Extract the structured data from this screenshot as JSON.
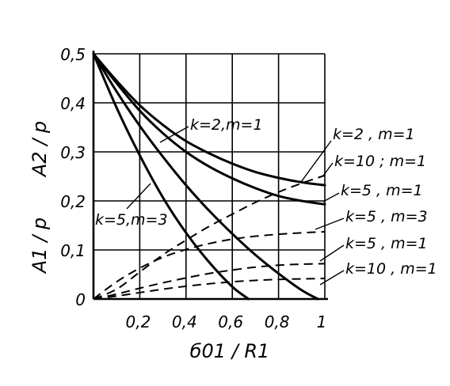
{
  "chart_data": {
    "type": "line",
    "title": "",
    "xlabel": "б01 / R1",
    "ylabel_1": "A1 / p",
    "ylabel_2": "A2 / p",
    "xlim": [
      0,
      1
    ],
    "ylim": [
      0,
      0.5
    ],
    "grid": true,
    "x_ticks": [
      {
        "value": 0.2,
        "label": "0,2"
      },
      {
        "value": 0.4,
        "label": "0,4"
      },
      {
        "value": 0.6,
        "label": "0,6"
      },
      {
        "value": 0.8,
        "label": "0,8"
      },
      {
        "value": 1.0,
        "label": "1"
      }
    ],
    "y_ticks": [
      {
        "value": 0,
        "label": "0"
      },
      {
        "value": 0.1,
        "label": "0,1"
      },
      {
        "value": 0.2,
        "label": "0,2"
      },
      {
        "value": 0.3,
        "label": "0,3"
      },
      {
        "value": 0.4,
        "label": "0,4"
      },
      {
        "value": 0.5,
        "label": "0,5"
      }
    ],
    "series": [
      {
        "name": "k=2, m=1",
        "style": "solid",
        "label": "k=2,m=1",
        "x": [
          0,
          0.1,
          0.2,
          0.3,
          0.4,
          0.5,
          0.6,
          0.7,
          0.8,
          0.9,
          1.0
        ],
        "y": [
          0.5,
          0.445,
          0.395,
          0.355,
          0.322,
          0.297,
          0.276,
          0.259,
          0.247,
          0.238,
          0.232
        ]
      },
      {
        "name": "k=10, m=1",
        "style": "solid",
        "label": "k=10 ; m=1",
        "x": [
          0,
          0.1,
          0.2,
          0.3,
          0.4,
          0.5,
          0.6,
          0.7,
          0.8,
          0.9,
          1.0
        ],
        "y": [
          0.5,
          0.44,
          0.384,
          0.338,
          0.3,
          0.27,
          0.246,
          0.226,
          0.21,
          0.2,
          0.193
        ]
      },
      {
        "name": "k=5, m=3",
        "style": "solid",
        "label": "k=5,m=3",
        "x": [
          0,
          0.1,
          0.2,
          0.3,
          0.4,
          0.5,
          0.6,
          0.67
        ],
        "y": [
          0.5,
          0.39,
          0.293,
          0.207,
          0.135,
          0.075,
          0.025,
          0
        ]
      },
      {
        "name": "k=5, m=1",
        "style": "solid",
        "label": "k=5 , m=1",
        "x": [
          0,
          0.1,
          0.2,
          0.3,
          0.4,
          0.5,
          0.6,
          0.7,
          0.8,
          0.9,
          0.97
        ],
        "y": [
          0.5,
          0.423,
          0.353,
          0.29,
          0.232,
          0.18,
          0.133,
          0.09,
          0.052,
          0.018,
          0
        ]
      },
      {
        "name": "k=2, m=1 (A2)",
        "style": "dashed",
        "x": [
          0,
          0.1,
          0.2,
          0.3,
          0.4,
          0.5,
          0.6,
          0.7,
          0.8,
          0.9,
          1.0
        ],
        "y": [
          0,
          0.02,
          0.055,
          0.09,
          0.12,
          0.148,
          0.173,
          0.197,
          0.218,
          0.236,
          0.252
        ]
      },
      {
        "name": "k=5, m=3 (A2)",
        "style": "dashed",
        "label": "k=5 , m=3",
        "x": [
          0,
          0.1,
          0.2,
          0.3,
          0.4,
          0.5,
          0.6,
          0.7,
          0.8,
          0.9,
          1.0
        ],
        "y": [
          0,
          0.035,
          0.063,
          0.085,
          0.101,
          0.113,
          0.122,
          0.128,
          0.132,
          0.135,
          0.137
        ]
      },
      {
        "name": "k=5, m=1 (A2)",
        "style": "dashed",
        "label": "k=5 , m=1",
        "x": [
          0,
          0.1,
          0.2,
          0.3,
          0.4,
          0.5,
          0.6,
          0.7,
          0.8,
          0.9,
          1.0
        ],
        "y": [
          0,
          0.01,
          0.022,
          0.033,
          0.043,
          0.052,
          0.059,
          0.065,
          0.069,
          0.071,
          0.072
        ]
      },
      {
        "name": "k=10, m=1 (A2)",
        "style": "dashed",
        "label": "k=10 , m=1",
        "x": [
          0,
          0.1,
          0.2,
          0.3,
          0.4,
          0.5,
          0.6,
          0.7,
          0.8,
          0.9,
          1.0
        ],
        "y": [
          0,
          0.006,
          0.013,
          0.02,
          0.026,
          0.031,
          0.035,
          0.038,
          0.04,
          0.041,
          0.042
        ]
      }
    ],
    "legend_labels": {
      "k2m1": "k=2 , m=1",
      "k10m1": "k=10 ; m=1",
      "k5m1_solid": "k=5 , m=1",
      "k5m3_dashed": "k=5 , m=3",
      "k5m1_dashed": "k=5 , m=1",
      "k10m1_dashed": "k=10 , m=1",
      "inner_k2m1": "k=2,m=1",
      "inner_k5m3": "k=5,m=3"
    }
  }
}
